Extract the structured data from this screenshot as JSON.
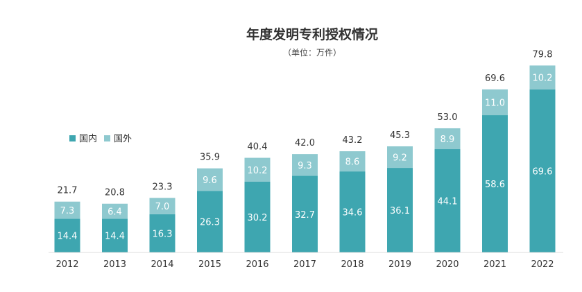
{
  "chart_data": {
    "type": "bar",
    "stacked": true,
    "title": "年度发明专利授权情况",
    "subtitle": "（单位：万件）",
    "categories": [
      "2012",
      "2013",
      "2014",
      "2015",
      "2016",
      "2017",
      "2018",
      "2019",
      "2020",
      "2021",
      "2022"
    ],
    "series": [
      {
        "name": "国内",
        "color": "#3ea6b0",
        "values": [
          14.4,
          14.4,
          16.3,
          26.3,
          30.2,
          32.7,
          34.6,
          36.1,
          44.1,
          58.6,
          69.6
        ]
      },
      {
        "name": "国外",
        "color": "#8ec9cf",
        "values": [
          7.3,
          6.4,
          7.0,
          9.6,
          10.2,
          9.3,
          8.6,
          9.2,
          8.9,
          11.0,
          10.2
        ]
      }
    ],
    "totals": [
      21.7,
      20.8,
      23.3,
      35.9,
      40.4,
      42.0,
      43.2,
      45.3,
      53.0,
      69.6,
      79.8
    ],
    "ylim": [
      0,
      82
    ],
    "legend_position": "left",
    "grid": false
  }
}
